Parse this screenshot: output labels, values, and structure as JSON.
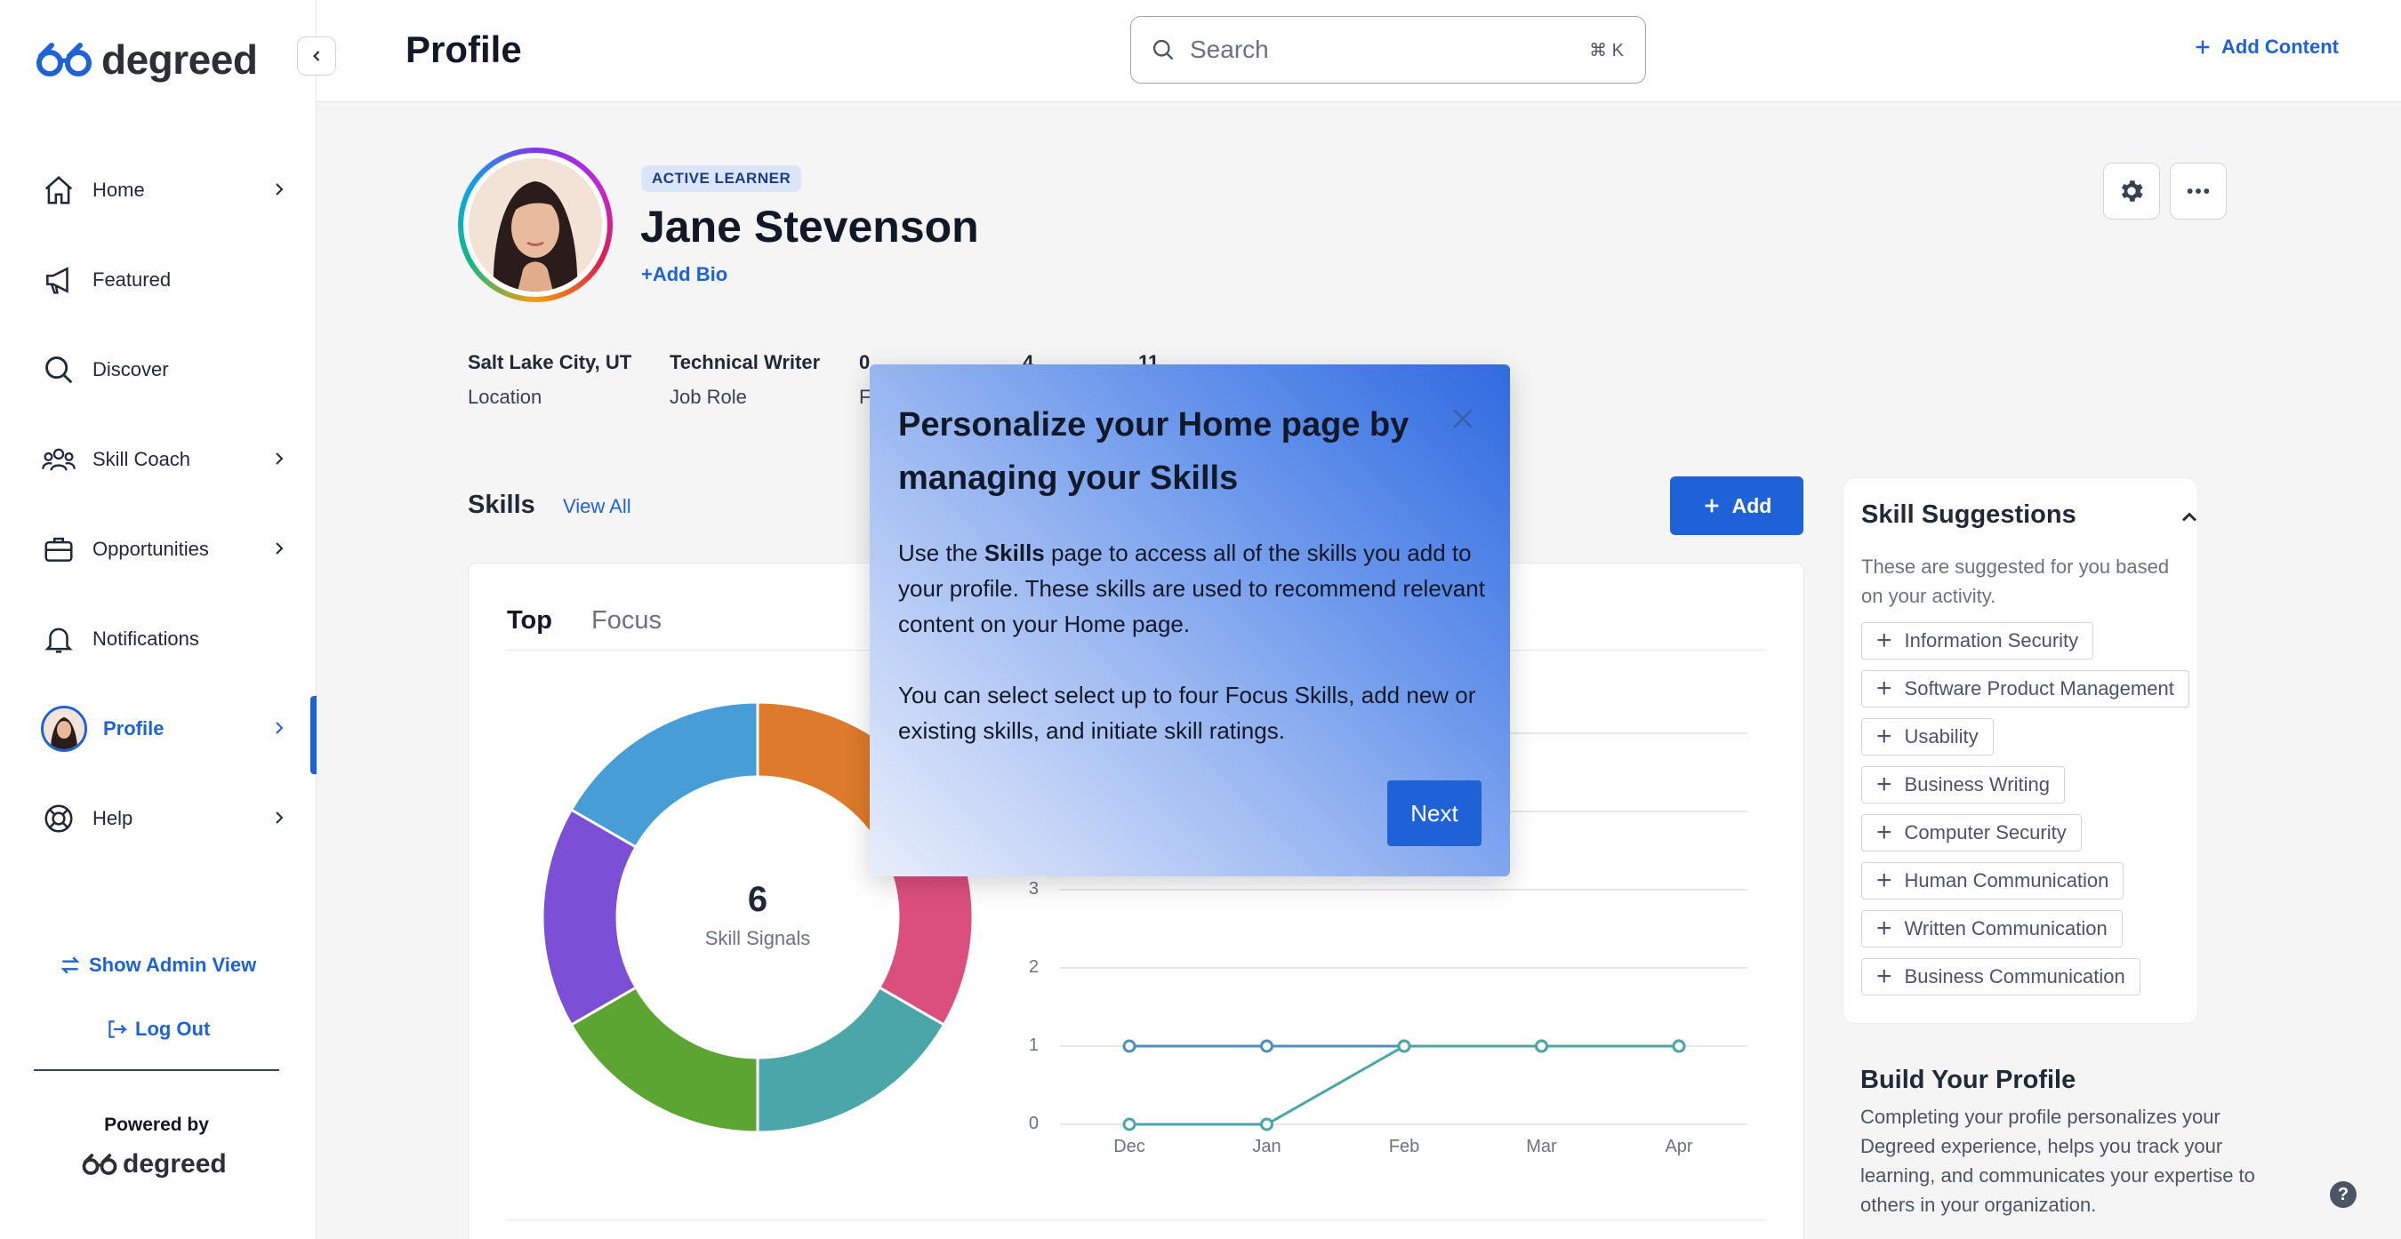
{
  "app": {
    "brand": "degreed",
    "accent": "#1f62d8"
  },
  "header": {
    "title": "Profile",
    "search_placeholder": "Search",
    "search_shortcut": "⌘ K",
    "add_content": "Add Content"
  },
  "sidebar": {
    "items": [
      {
        "label": "Home",
        "icon": "home-icon",
        "chevron": true
      },
      {
        "label": "Featured",
        "icon": "megaphone-icon",
        "chevron": false
      },
      {
        "label": "Discover",
        "icon": "search-icon",
        "chevron": false
      },
      {
        "label": "Skill Coach",
        "icon": "team-icon",
        "chevron": true
      },
      {
        "label": "Opportunities",
        "icon": "briefcase-icon",
        "chevron": true
      },
      {
        "label": "Notifications",
        "icon": "bell-icon",
        "chevron": false
      },
      {
        "label": "Profile",
        "icon": "avatar",
        "chevron": true,
        "active": true
      },
      {
        "label": "Help",
        "icon": "lifebuoy-icon",
        "chevron": true
      }
    ],
    "admin_view": "Show Admin View",
    "log_out": "Log Out",
    "powered_by": "Powered by",
    "powered_brand": "degreed"
  },
  "profile": {
    "badge": "ACTIVE LEARNER",
    "name": "Jane Stevenson",
    "add_bio": "+Add Bio",
    "meta": [
      {
        "value": "Salt Lake City, UT",
        "label": "Location"
      },
      {
        "value": "Technical Writer",
        "label": "Job Role"
      },
      {
        "value": "0",
        "label": "F"
      },
      {
        "value": "4",
        "label": ""
      },
      {
        "value": "11",
        "label": ""
      }
    ]
  },
  "skills": {
    "title": "Skills",
    "view_all": "View All",
    "add": "Add",
    "tabs": [
      "Top",
      "Focus"
    ],
    "donut": {
      "count": "6",
      "label": "Skill Signals",
      "segments": [
        {
          "color": "#dd7a2b"
        },
        {
          "color": "#db4f7f"
        },
        {
          "color": "#4aa6a8"
        },
        {
          "color": "#5da532"
        },
        {
          "color": "#7b4fd6"
        },
        {
          "color": "#479ed6"
        }
      ]
    }
  },
  "chart_data": {
    "type": "line",
    "categories": [
      "Dec",
      "Jan",
      "Feb",
      "Mar",
      "Apr"
    ],
    "series": [
      {
        "values": [
          1,
          1,
          1,
          1,
          1
        ],
        "color": "#4a90c4"
      },
      {
        "values": [
          0,
          0,
          1,
          1,
          1
        ],
        "color": "#4aa6a8"
      }
    ],
    "yticks": [
      "0",
      "1",
      "2",
      "3"
    ],
    "ylim": [
      0,
      5
    ],
    "grid": true
  },
  "suggestions": {
    "title": "Skill Suggestions",
    "description": "These are suggested for you based on your activity.",
    "chips": [
      "Information Security",
      "Software Product Management",
      "Usability",
      "Business Writing",
      "Computer Security",
      "Human Communication",
      "Written Communication",
      "Business Communication"
    ]
  },
  "build_profile": {
    "title": "Build Your Profile",
    "description": "Completing your profile personalizes your Degreed experience, helps you track your learning, and communicates your expertise to others in your organization."
  },
  "tour": {
    "title": "Personalize your Home page by managing your Skills",
    "p1_a": "Use the ",
    "p1_bold": "Skills",
    "p1_b": " page to access all of the skills you add to your profile. These skills are used to recommend relevant content on your Home page.",
    "p2": "You can select select up to four Focus Skills, add new or existing skills, and initiate skill ratings.",
    "next": "Next"
  },
  "help_fab": "?"
}
